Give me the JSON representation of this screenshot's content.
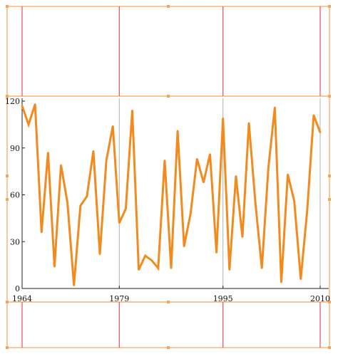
{
  "chart_data": {
    "type": "line",
    "title": "",
    "xlabel": "",
    "ylabel": "",
    "x_ticks": [
      "1964",
      "1979",
      "1995",
      "2010"
    ],
    "y_ticks": [
      "0",
      "30",
      "60",
      "90",
      "120"
    ],
    "xlim": [
      1964,
      2010
    ],
    "ylim": [
      0,
      120
    ],
    "grid": true,
    "colors": {
      "line": "#f28a1e",
      "frame": "#f5a45a",
      "vertical_grid": "#e8505b",
      "plot_grid": "#b0b0b0",
      "axis": "#222222"
    },
    "series": [
      {
        "x": [
          1964,
          1965,
          1966,
          1967,
          1968,
          1969,
          1970,
          1971,
          1972,
          1973,
          1974,
          1975,
          1976,
          1977,
          1978,
          1979,
          1980,
          1981,
          1982,
          1983,
          1984,
          1985,
          1986,
          1987,
          1988,
          1989,
          1990,
          1991,
          1992,
          1993,
          1994,
          1995,
          1996,
          1997,
          1998,
          1999,
          2000,
          2001,
          2002,
          2003,
          2004,
          2005,
          2006,
          2007,
          2008,
          2009,
          2010
        ],
        "values": [
          117,
          105,
          118,
          36,
          87,
          14,
          79,
          55,
          2,
          53,
          59,
          88,
          22,
          82,
          104,
          42,
          51,
          114,
          12,
          21,
          18,
          13,
          82,
          13,
          101,
          27,
          48,
          83,
          68,
          86,
          23,
          109,
          12,
          72,
          33,
          106,
          55,
          13,
          77,
          116,
          4,
          73,
          56,
          6,
          50,
          111,
          100
        ]
      }
    ]
  }
}
